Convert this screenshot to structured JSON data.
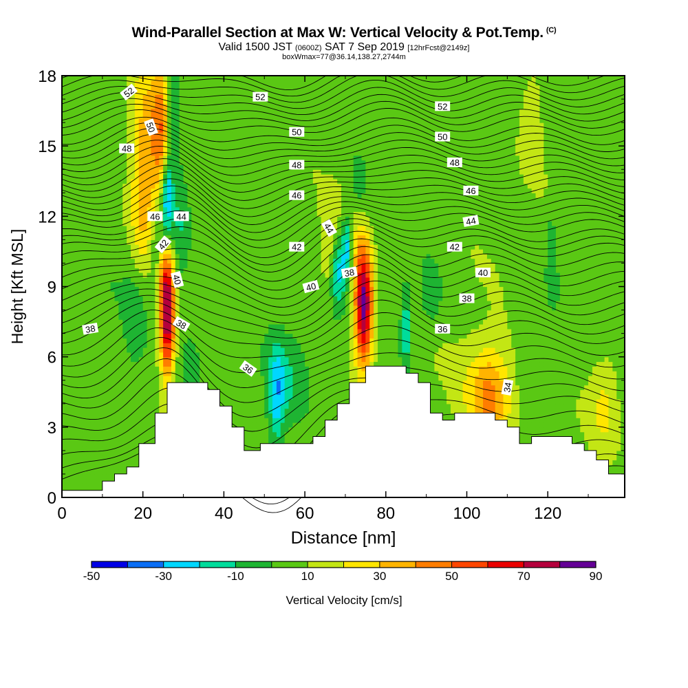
{
  "header": {
    "title": "Wind-Parallel Section at Max W: Vertical Velocity & Pot.Temp.",
    "copyright": "(C)",
    "valid_prefix": "Valid 1500 JST",
    "valid_utc": "(0600Z)",
    "valid_date": "SAT 7 Sep 2019",
    "forecast": "[12hrFcst@2149z]",
    "boxwmax": "boxWmax=77@36.14,138.27,2744m"
  },
  "chart_data": {
    "type": "heatmap",
    "title": "Wind-Parallel Section at Max W: Vertical Velocity & Pot.Temp.",
    "xlabel": "Distance [nm]",
    "ylabel": "Height [Kft MSL]",
    "xlim": [
      0,
      139
    ],
    "ylim": [
      0,
      18
    ],
    "x_ticks": [
      "0",
      "20",
      "40",
      "60",
      "80",
      "100",
      "120"
    ],
    "y_ticks": [
      "0",
      "3",
      "6",
      "9",
      "12",
      "15",
      "18"
    ],
    "colorbar": {
      "label": "Vertical Velocity [cm/s]",
      "tick_labels": [
        "-50",
        "-30",
        "-10",
        "10",
        "30",
        "50",
        "70",
        "90"
      ],
      "bins": [
        {
          "from": -50,
          "to": -40,
          "color": "#0000e6"
        },
        {
          "from": -40,
          "to": -30,
          "color": "#0a6ef5"
        },
        {
          "from": -30,
          "to": -20,
          "color": "#00d7ff"
        },
        {
          "from": -20,
          "to": -10,
          "color": "#00dc9b"
        },
        {
          "from": -10,
          "to": 0,
          "color": "#1eb432"
        },
        {
          "from": 0,
          "to": 10,
          "color": "#5ac814"
        },
        {
          "from": 10,
          "to": 20,
          "color": "#c3e614"
        },
        {
          "from": 20,
          "to": 30,
          "color": "#ffe600"
        },
        {
          "from": 30,
          "to": 40,
          "color": "#ffb400"
        },
        {
          "from": 40,
          "to": 50,
          "color": "#ff7d00"
        },
        {
          "from": 50,
          "to": 60,
          "color": "#ff4600"
        },
        {
          "from": 60,
          "to": 70,
          "color": "#eb0000"
        },
        {
          "from": 70,
          "to": 80,
          "color": "#b4003c"
        },
        {
          "from": 80,
          "to": 90,
          "color": "#640096"
        }
      ]
    },
    "background_w": 5,
    "w_features": [
      {
        "x": 25,
        "y": 15.5,
        "value": 40,
        "sx": 1.6,
        "sy": 2.2
      },
      {
        "x": 21,
        "y": 15.0,
        "value": 28,
        "sx": 2.6,
        "sy": 2.6
      },
      {
        "x": 20,
        "y": 12.0,
        "value": 18,
        "sx": 2.2,
        "sy": 1.8
      },
      {
        "x": 26,
        "y": 7.5,
        "value": 70,
        "sx": 1.3,
        "sy": 1.7
      },
      {
        "x": 25.5,
        "y": 9.5,
        "value": 28,
        "sx": 1.5,
        "sy": 1.1
      },
      {
        "x": 74.5,
        "y": 8.2,
        "value": 82,
        "sx": 1.6,
        "sy": 1.8
      },
      {
        "x": 72,
        "y": 11.5,
        "value": 20,
        "sx": 2.0,
        "sy": 1.5
      },
      {
        "x": 66,
        "y": 10.5,
        "value": 18,
        "sx": 1.6,
        "sy": 1.4
      },
      {
        "x": 106,
        "y": 4.4,
        "value": 30,
        "sx": 3.5,
        "sy": 1.4
      },
      {
        "x": 116,
        "y": 16.5,
        "value": 15,
        "sx": 2.0,
        "sy": 1.5
      },
      {
        "x": 134,
        "y": 4.0,
        "value": 15,
        "sx": 2.5,
        "sy": 1.5
      },
      {
        "x": 104,
        "y": 4.5,
        "value": 12,
        "sx": 6,
        "sy": 2.2
      },
      {
        "x": 27,
        "y": 16.8,
        "value": -28,
        "sx": 1.4,
        "sy": 1.6
      },
      {
        "x": 26,
        "y": 13.0,
        "value": -45,
        "sx": 1.0,
        "sy": 1.4
      },
      {
        "x": 23.5,
        "y": 10.5,
        "value": -18,
        "sx": 1.4,
        "sy": 1.8
      },
      {
        "x": 29,
        "y": 11.5,
        "value": -12,
        "sx": 1.3,
        "sy": 2.0
      },
      {
        "x": 18,
        "y": 7.5,
        "value": -12,
        "sx": 1.8,
        "sy": 1.6
      },
      {
        "x": 70.5,
        "y": 10.8,
        "value": -40,
        "sx": 1.0,
        "sy": 1.0
      },
      {
        "x": 68,
        "y": 9.7,
        "value": -30,
        "sx": 1.2,
        "sy": 1.0
      },
      {
        "x": 73,
        "y": 12.8,
        "value": -18,
        "sx": 1.6,
        "sy": 1.2
      },
      {
        "x": 85,
        "y": 7.2,
        "value": -28,
        "sx": 1.0,
        "sy": 1.2
      },
      {
        "x": 53,
        "y": 4.2,
        "value": -26,
        "sx": 1.4,
        "sy": 1.6
      },
      {
        "x": 56,
        "y": 5.0,
        "value": -12,
        "sx": 3.0,
        "sy": 1.3
      },
      {
        "x": 32,
        "y": 6.0,
        "value": -12,
        "sx": 2.0,
        "sy": 1.0
      },
      {
        "x": 91,
        "y": 8.5,
        "value": -12,
        "sx": 2.0,
        "sy": 1.0
      },
      {
        "x": 121,
        "y": 10.5,
        "value": -16,
        "sx": 0.7,
        "sy": 1.2
      }
    ],
    "terrain": [
      [
        0,
        0.3
      ],
      [
        10,
        0.3
      ],
      [
        10,
        0.7
      ],
      [
        13,
        0.7
      ],
      [
        13,
        1.0
      ],
      [
        16,
        1.0
      ],
      [
        16,
        1.3
      ],
      [
        19,
        1.3
      ],
      [
        19,
        2.3
      ],
      [
        23,
        2.3
      ],
      [
        23,
        3.6
      ],
      [
        26,
        3.6
      ],
      [
        26,
        4.9
      ],
      [
        36,
        4.9
      ],
      [
        36,
        4.6
      ],
      [
        39,
        4.6
      ],
      [
        39,
        3.9
      ],
      [
        42,
        3.9
      ],
      [
        42,
        3.0
      ],
      [
        45,
        3.0
      ],
      [
        45,
        2.0
      ],
      [
        49,
        2.0
      ],
      [
        49,
        2.3
      ],
      [
        62,
        2.3
      ],
      [
        62,
        2.6
      ],
      [
        65,
        2.6
      ],
      [
        65,
        3.3
      ],
      [
        68,
        3.3
      ],
      [
        68,
        4.0
      ],
      [
        71,
        4.0
      ],
      [
        71,
        4.9
      ],
      [
        75,
        4.9
      ],
      [
        75,
        5.6
      ],
      [
        85,
        5.6
      ],
      [
        85,
        5.3
      ],
      [
        88,
        5.3
      ],
      [
        88,
        4.9
      ],
      [
        91,
        4.9
      ],
      [
        91,
        3.6
      ],
      [
        94,
        3.6
      ],
      [
        94,
        3.3
      ],
      [
        97,
        3.3
      ],
      [
        97,
        3.6
      ],
      [
        107,
        3.6
      ],
      [
        107,
        3.3
      ],
      [
        110,
        3.3
      ],
      [
        110,
        3.0
      ],
      [
        113,
        3.0
      ],
      [
        113,
        2.3
      ],
      [
        116,
        2.3
      ],
      [
        116,
        2.6
      ],
      [
        126,
        2.6
      ],
      [
        126,
        2.3
      ],
      [
        129,
        2.3
      ],
      [
        129,
        2.0
      ],
      [
        132,
        2.0
      ],
      [
        132,
        1.6
      ],
      [
        135,
        1.6
      ],
      [
        135,
        1.0
      ],
      [
        139,
        1.0
      ]
    ],
    "theta_isentropes": [
      {
        "theta": 31,
        "y": 0.6
      },
      {
        "theta": 31.5,
        "y": 1.0
      },
      {
        "theta": 32,
        "y": 1.5
      },
      {
        "theta": 32.5,
        "y": 2.1
      },
      {
        "theta": 33,
        "y": 2.7
      },
      {
        "theta": 33.5,
        "y": 3.3
      },
      {
        "theta": 34,
        "y": 3.9
      },
      {
        "theta": 34.5,
        "y": 4.4
      },
      {
        "theta": 35,
        "y": 4.9
      },
      {
        "theta": 35.5,
        "y": 5.4
      },
      {
        "theta": 36,
        "y": 5.9
      },
      {
        "theta": 36.5,
        "y": 6.4
      },
      {
        "theta": 37,
        "y": 6.9
      },
      {
        "theta": 37.5,
        "y": 7.3
      },
      {
        "theta": 38,
        "y": 7.7
      },
      {
        "theta": 38.5,
        "y": 8.1
      },
      {
        "theta": 39,
        "y": 8.5
      },
      {
        "theta": 39.5,
        "y": 8.9
      },
      {
        "theta": 40,
        "y": 9.3
      },
      {
        "theta": 40.5,
        "y": 9.7
      },
      {
        "theta": 41,
        "y": 10.1
      },
      {
        "theta": 41.5,
        "y": 10.5
      },
      {
        "theta": 42,
        "y": 10.8
      },
      {
        "theta": 42.5,
        "y": 11.1
      },
      {
        "theta": 43,
        "y": 11.5
      },
      {
        "theta": 43.5,
        "y": 11.8
      },
      {
        "theta": 44,
        "y": 12.1
      },
      {
        "theta": 44.5,
        "y": 12.4
      },
      {
        "theta": 45,
        "y": 12.7
      },
      {
        "theta": 45.5,
        "y": 13.0
      },
      {
        "theta": 46,
        "y": 13.3
      },
      {
        "theta": 46.5,
        "y": 13.6
      },
      {
        "theta": 47,
        "y": 13.9
      },
      {
        "theta": 47.5,
        "y": 14.2
      },
      {
        "theta": 48,
        "y": 14.5
      },
      {
        "theta": 48.5,
        "y": 14.8
      },
      {
        "theta": 49,
        "y": 15.1
      },
      {
        "theta": 49.5,
        "y": 15.4
      },
      {
        "theta": 50,
        "y": 15.8
      },
      {
        "theta": 50.5,
        "y": 16.1
      },
      {
        "theta": 51,
        "y": 16.4
      },
      {
        "theta": 51.5,
        "y": 16.7
      },
      {
        "theta": 52,
        "y": 17.0
      },
      {
        "theta": 52.5,
        "y": 17.3
      },
      {
        "theta": 53,
        "y": 17.6
      },
      {
        "theta": 53.5,
        "y": 17.9
      }
    ],
    "contour_labels": [
      {
        "text": "52",
        "x": 16.5,
        "y": 17.3,
        "angle": -38
      },
      {
        "text": "52",
        "x": 49,
        "y": 17.1,
        "angle": 0
      },
      {
        "text": "52",
        "x": 94,
        "y": 16.7,
        "angle": 0
      },
      {
        "text": "50",
        "x": 22,
        "y": 15.8,
        "angle": 70
      },
      {
        "text": "50",
        "x": 58,
        "y": 15.6,
        "angle": 0
      },
      {
        "text": "50",
        "x": 94,
        "y": 15.4,
        "angle": 0
      },
      {
        "text": "48",
        "x": 16,
        "y": 14.9,
        "angle": 0
      },
      {
        "text": "48",
        "x": 58,
        "y": 14.2,
        "angle": 0
      },
      {
        "text": "48",
        "x": 97,
        "y": 14.3,
        "angle": 0
      },
      {
        "text": "46",
        "x": 23,
        "y": 12.0,
        "angle": 0
      },
      {
        "text": "46",
        "x": 58,
        "y": 12.9,
        "angle": 0
      },
      {
        "text": "46",
        "x": 101,
        "y": 13.1,
        "angle": 0
      },
      {
        "text": "44",
        "x": 29.5,
        "y": 12.0,
        "angle": 0
      },
      {
        "text": "44",
        "x": 66,
        "y": 11.5,
        "angle": 60
      },
      {
        "text": "44",
        "x": 101,
        "y": 11.8,
        "angle": -10
      },
      {
        "text": "42",
        "x": 25,
        "y": 10.8,
        "angle": -50
      },
      {
        "text": "42",
        "x": 58,
        "y": 10.7,
        "angle": 0
      },
      {
        "text": "42",
        "x": 97,
        "y": 10.7,
        "angle": 0
      },
      {
        "text": "40",
        "x": 28.5,
        "y": 9.3,
        "angle": 75
      },
      {
        "text": "40",
        "x": 61.5,
        "y": 9.0,
        "angle": -15
      },
      {
        "text": "40",
        "x": 104,
        "y": 9.6,
        "angle": 0
      },
      {
        "text": "38",
        "x": 7,
        "y": 7.2,
        "angle": -10
      },
      {
        "text": "38",
        "x": 29.5,
        "y": 7.4,
        "angle": 30
      },
      {
        "text": "38",
        "x": 71,
        "y": 9.6,
        "angle": -10
      },
      {
        "text": "38",
        "x": 100,
        "y": 8.5,
        "angle": 0
      },
      {
        "text": "36",
        "x": 46,
        "y": 5.5,
        "angle": 35
      },
      {
        "text": "36",
        "x": 94,
        "y": 7.2,
        "angle": 0
      },
      {
        "text": "34",
        "x": 110,
        "y": 4.7,
        "angle": -80
      }
    ]
  }
}
